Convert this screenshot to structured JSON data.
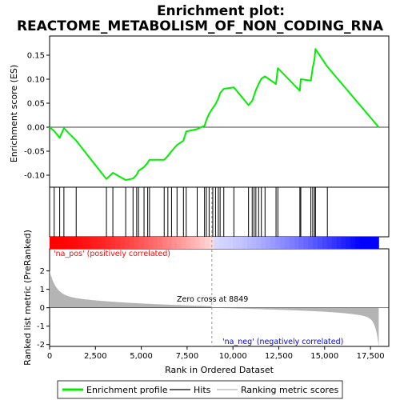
{
  "chart_data": {
    "type": "line",
    "title_line1": "Enrichment plot:",
    "title_line2": "REACTOME_METABOLISM_OF_NON_CODING_RNA",
    "xlabel": "Rank in Ordered Dataset",
    "ylabel_top": "Enrichment score (ES)",
    "ylabel_bottom": "Ranked list metric (PreRanked)",
    "x_range": [
      0,
      18500
    ],
    "x_ticks": [
      0,
      2500,
      5000,
      7500,
      10000,
      12500,
      15000,
      17500
    ],
    "x_tick_labels": [
      "0",
      "2,500",
      "5,000",
      "7,500",
      "10,000",
      "12,500",
      "15,000",
      "17,500"
    ],
    "es_range": [
      -0.125,
      0.19
    ],
    "es_ticks": [
      -0.1,
      -0.05,
      0.0,
      0.05,
      0.1,
      0.15
    ],
    "es_tick_labels": [
      "-0.10",
      "-0.05",
      "0.00",
      "0.05",
      "0.10",
      "0.15"
    ],
    "metric_range": [
      -2.1,
      3.2
    ],
    "metric_ticks": [
      -2,
      -1,
      0,
      1,
      2
    ],
    "metric_tick_labels": [
      "-2",
      "-1",
      "0",
      "1",
      "2"
    ],
    "n_ranks": 17950,
    "zero_cross": 8849,
    "zero_cross_label": "Zero cross at 8849",
    "pos_label": "'na_pos' (positively correlated)",
    "neg_label": "'na_neg' (negatively correlated)",
    "hits": [
      250,
      550,
      780,
      1450,
      3100,
      3450,
      4150,
      4550,
      4750,
      4850,
      5150,
      5350,
      5450,
      6250,
      6450,
      6650,
      6950,
      7300,
      7450,
      8050,
      8450,
      8550,
      8700,
      8900,
      9050,
      9200,
      9300,
      9500,
      10050,
      10850,
      11050,
      11150,
      11250,
      11400,
      11550,
      11750,
      12350,
      12450,
      13650,
      13700,
      14250,
      14350,
      14450,
      14500,
      15150
    ],
    "es_points": [
      [
        0,
        0.0
      ],
      [
        250,
        -0.008
      ],
      [
        550,
        -0.022
      ],
      [
        780,
        -0.002
      ],
      [
        1450,
        -0.028
      ],
      [
        3100,
        -0.108
      ],
      [
        3450,
        -0.095
      ],
      [
        4150,
        -0.11
      ],
      [
        4550,
        -0.107
      ],
      [
        4750,
        -0.099
      ],
      [
        4850,
        -0.091
      ],
      [
        5150,
        -0.083
      ],
      [
        5350,
        -0.074
      ],
      [
        5450,
        -0.068
      ],
      [
        6250,
        -0.068
      ],
      [
        6450,
        -0.06
      ],
      [
        6650,
        -0.05
      ],
      [
        6950,
        -0.037
      ],
      [
        7300,
        -0.028
      ],
      [
        7450,
        -0.009
      ],
      [
        8050,
        -0.004
      ],
      [
        8450,
        0.003
      ],
      [
        8550,
        0.015
      ],
      [
        8700,
        0.028
      ],
      [
        8900,
        0.04
      ],
      [
        9050,
        0.048
      ],
      [
        9200,
        0.06
      ],
      [
        9300,
        0.071
      ],
      [
        9500,
        0.08
      ],
      [
        10050,
        0.083
      ],
      [
        10850,
        0.046
      ],
      [
        11050,
        0.055
      ],
      [
        11150,
        0.066
      ],
      [
        11250,
        0.077
      ],
      [
        11400,
        0.09
      ],
      [
        11550,
        0.101
      ],
      [
        11750,
        0.106
      ],
      [
        12350,
        0.09
      ],
      [
        12450,
        0.123
      ],
      [
        13650,
        0.076
      ],
      [
        13700,
        0.1
      ],
      [
        14250,
        0.097
      ],
      [
        14350,
        0.124
      ],
      [
        14450,
        0.142
      ],
      [
        14500,
        0.163
      ],
      [
        15150,
        0.126
      ],
      [
        17950,
        0.0
      ]
    ],
    "legend": [
      "Enrichment profile",
      "Hits",
      "Ranking metric scores"
    ],
    "colors": {
      "es_line": "#00ee00",
      "hit": "#000000",
      "metric_fill": "#b4b4b4",
      "bar_red": "#ff0000",
      "bar_white": "#ffffff",
      "bar_blue": "#0000ff",
      "pos_text": "#ff0000",
      "neg_text": "#0000ff"
    }
  }
}
